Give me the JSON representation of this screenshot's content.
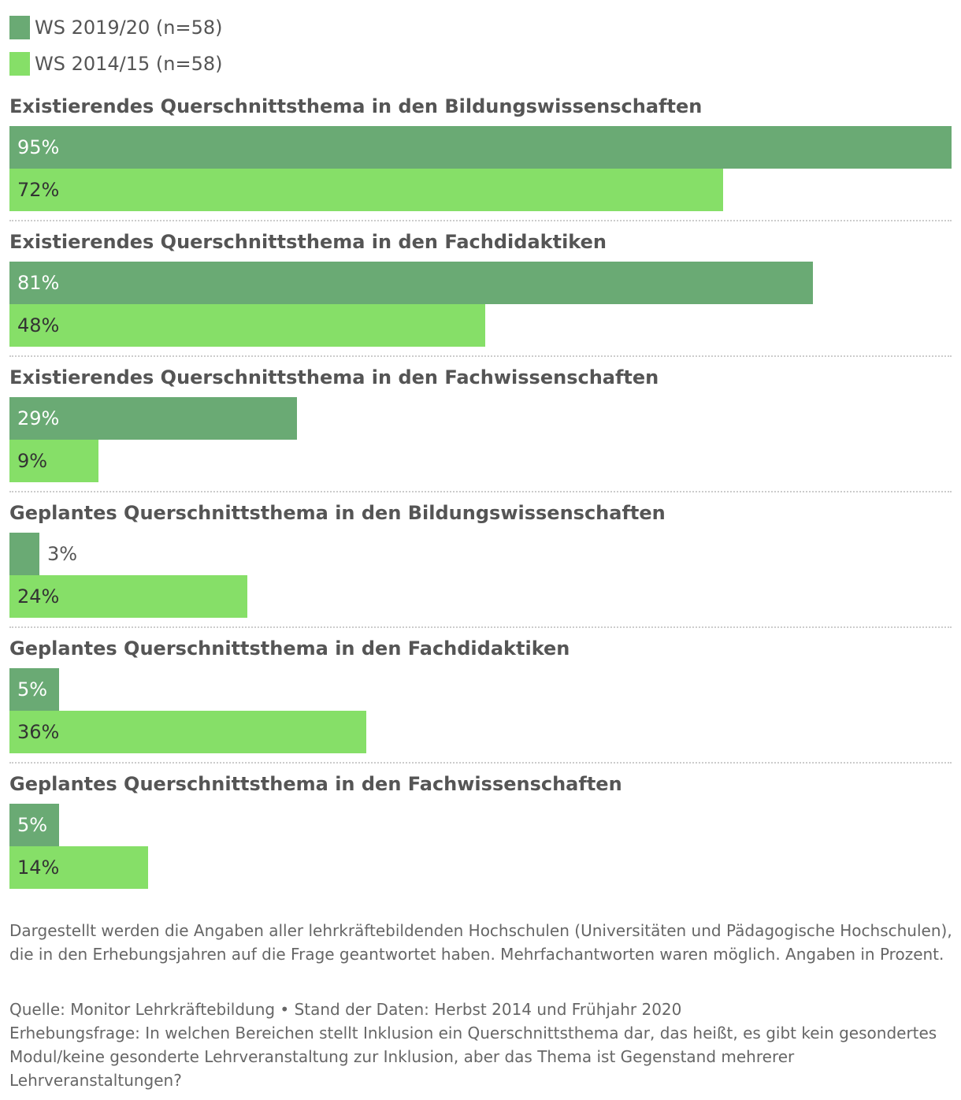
{
  "chart_data": {
    "type": "bar",
    "orientation": "horizontal",
    "xlim": [
      0,
      95
    ],
    "series": [
      {
        "name": "WS 2019/20 (n=58)",
        "color": "#6aaa74"
      },
      {
        "name": "WS 2014/15 (n=58)",
        "color": "#86df68"
      }
    ],
    "categories": [
      "Existierendes Querschnittsthema in den Bildungswissenschaften",
      "Existierendes Querschnittsthema in den Fachdidaktiken",
      "Existierendes Querschnittsthema in den Fachwissenschaften",
      "Geplantes Querschnittsthema in den Bildungswissenschaften",
      "Geplantes Querschnittsthema in den Fachdidaktiken",
      "Geplantes Querschnittsthema in den Fachwissenschaften"
    ],
    "values": [
      [
        95,
        72
      ],
      [
        81,
        48
      ],
      [
        29,
        9
      ],
      [
        3,
        24
      ],
      [
        5,
        36
      ],
      [
        5,
        14
      ]
    ],
    "labels": [
      [
        "95%",
        "72%"
      ],
      [
        "81%",
        "48%"
      ],
      [
        "29%",
        "9%"
      ],
      [
        "3%",
        "24%"
      ],
      [
        "5%",
        "36%"
      ],
      [
        "5%",
        "14%"
      ]
    ],
    "legend_position": "top-left"
  },
  "footnote": "Dargestellt werden die Angaben aller lehrkräftebildenden Hochschulen (Universitäten und Pädagogische Hochschulen), die in den Erhebungsjahren auf die Frage geantwortet haben. Mehrfachantworten waren möglich. Angaben in Prozent.",
  "source": {
    "line1": "Quelle: Monitor Lehrkräftebildung • Stand der Daten: Herbst 2014 und Frühjahr 2020",
    "line2": "Erhebungsfrage: In welchen Bereichen stellt Inklusion ein Querschnittsthema dar, das heißt, es gibt kein gesondertes Modul/keine gesonderte Lehrveranstaltung zur Inklusion, aber das Thema ist Gegenstand mehrerer Lehrveranstaltungen?"
  }
}
